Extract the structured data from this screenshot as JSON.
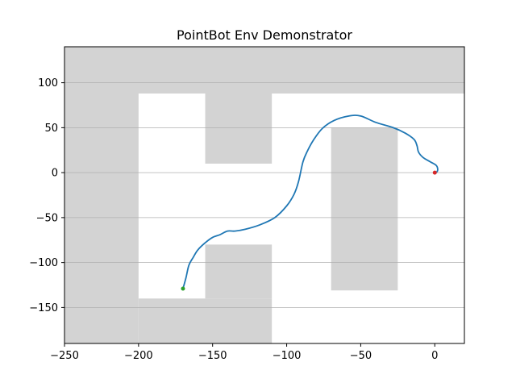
{
  "chart_data": {
    "type": "line",
    "title": "PointBot Env Demonstrator",
    "xlabel": "",
    "ylabel": "",
    "xlim": [
      -250,
      20
    ],
    "ylim": [
      -190,
      140
    ],
    "xticks": [
      -250,
      -200,
      -150,
      -100,
      -50,
      0
    ],
    "yticks": [
      -150,
      -100,
      -50,
      0,
      50,
      100
    ],
    "grid": "y-axis horizontal lines",
    "obstacles": [
      {
        "x0": -250,
        "x1": 20,
        "y0": 88,
        "y1": 140
      },
      {
        "x0": -250,
        "x1": -200,
        "y0": -190,
        "y1": 88
      },
      {
        "x0": -200,
        "x1": -110,
        "y0": -190,
        "y1": -140
      },
      {
        "x0": -155,
        "x1": -110,
        "y0": -140,
        "y1": -80
      },
      {
        "x0": -155,
        "x1": -110,
        "y0": 10,
        "y1": 88
      },
      {
        "x0": -70,
        "x1": -25,
        "y0": -131,
        "y1": 50
      }
    ],
    "obstacle_color": "#d3d3d3",
    "series": [
      {
        "color": "#1f77b4",
        "x": [
          1,
          2,
          1,
          -3,
          -8,
          -11,
          -12,
          -14,
          -20,
          -28,
          -40,
          -50,
          -58,
          -68,
          -76,
          -82,
          -86,
          -89,
          -92,
          -95,
          -100,
          -108,
          -118,
          -128,
          -135,
          -140,
          -145,
          -150,
          -155,
          -160,
          -163,
          -166,
          -168,
          -170
        ],
        "y": [
          0,
          3,
          8,
          12,
          17,
          23,
          30,
          37,
          44,
          50,
          56,
          63,
          63,
          58,
          49,
          36,
          24,
          12,
          -10,
          -24,
          -37,
          -50,
          -58,
          -63,
          -65,
          -65,
          -69,
          -72,
          -78,
          -86,
          -94,
          -103,
          -117,
          -129
        ]
      }
    ],
    "markers": [
      {
        "label": "start",
        "x": 0,
        "y": 0,
        "color": "#d62728"
      },
      {
        "label": "end",
        "x": -170,
        "y": -129,
        "color": "#2ca02c"
      }
    ]
  }
}
